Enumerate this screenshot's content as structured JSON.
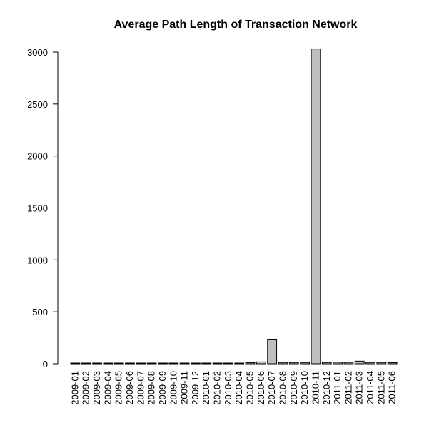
{
  "chart_data": {
    "type": "bar",
    "title": "Average Path Length of Transaction Network",
    "xlabel": "",
    "ylabel": "",
    "ylim": [
      0,
      3000
    ],
    "yticks": [
      0,
      500,
      1000,
      1500,
      2000,
      2500,
      3000
    ],
    "grid": false,
    "legend": "none",
    "bar_color": "#bebebe",
    "categories": [
      "2009-01",
      "2009-02",
      "2009-03",
      "2009-04",
      "2009-05",
      "2009-06",
      "2009-07",
      "2009-08",
      "2009-09",
      "2009-10",
      "2009-11",
      "2009-12",
      "2010-01",
      "2010-02",
      "2010-03",
      "2010-04",
      "2010-05",
      "2010-06",
      "2010-07",
      "2010-08",
      "2010-09",
      "2010-10",
      "2010-11",
      "2010-12",
      "2011-01",
      "2011-02",
      "2011-03",
      "2011-04",
      "2011-05",
      "2011-06"
    ],
    "values": [
      2,
      2,
      2,
      2,
      2,
      2,
      2,
      2,
      2,
      2,
      3,
      3,
      4,
      5,
      4,
      6,
      10,
      18,
      237,
      12,
      12,
      12,
      3030,
      12,
      14,
      13,
      25,
      12,
      12,
      10
    ]
  }
}
